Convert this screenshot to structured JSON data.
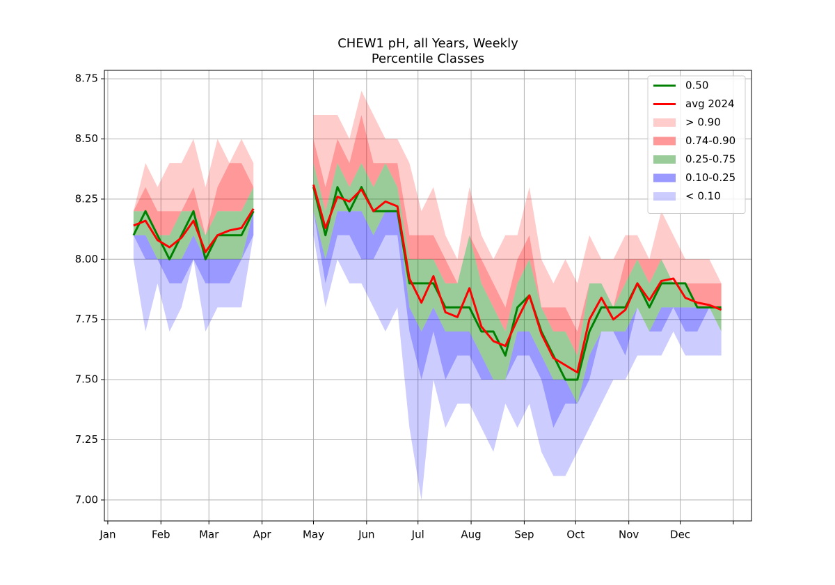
{
  "chart_data": {
    "type": "percentile_bands",
    "title": [
      "CHEW1 pH, all Years, Weekly",
      "Percentile Classes"
    ],
    "x": [
      16,
      23,
      30,
      37,
      44,
      51,
      58,
      65,
      72,
      79,
      86,
      93,
      100,
      107,
      114,
      121,
      128,
      135,
      142,
      149,
      156,
      163,
      170,
      177,
      184,
      191,
      198,
      205,
      212,
      219,
      226,
      233,
      240,
      247,
      254,
      261,
      268,
      275,
      282,
      289,
      296,
      303,
      310,
      317,
      324,
      331,
      338,
      345,
      352,
      359
    ],
    "xlim": [
      -1,
      376.6
    ],
    "xticks": [
      {
        "value": 1,
        "label": "Jan"
      },
      {
        "value": 32,
        "label": "Feb"
      },
      {
        "value": 60,
        "label": "Mar"
      },
      {
        "value": 91,
        "label": "Apr"
      },
      {
        "value": 121,
        "label": "May"
      },
      {
        "value": 152,
        "label": "Jun"
      },
      {
        "value": 182,
        "label": "Jul"
      },
      {
        "value": 213,
        "label": "Aug"
      },
      {
        "value": 244,
        "label": "Sep"
      },
      {
        "value": 274,
        "label": "Oct"
      },
      {
        "value": 305,
        "label": "Nov"
      },
      {
        "value": 335,
        "label": "Dec"
      },
      {
        "value": 366
      }
    ],
    "ylim": [
      6.913,
      8.785
    ],
    "yticks": [
      {
        "value": 7,
        "label": "7.00"
      },
      7.25,
      {
        "value": 7.5,
        "label": "7.50"
      },
      7.75,
      {
        "value": 8,
        "label": "8.00"
      },
      8.25,
      {
        "value": 8.5,
        "label": "8.50"
      },
      8.75
    ],
    "grid": true,
    "legend": "upper right",
    "levels": [
      [
        8.0,
        7.7,
        7.9,
        7.7,
        7.8,
        8.0,
        7.7,
        7.8,
        7.8,
        7.8,
        8.1,
        null,
        null,
        null,
        null,
        8.1,
        7.8,
        8.0,
        7.9,
        7.9,
        7.8,
        7.7,
        7.8,
        7.3,
        7.0,
        7.5,
        7.3,
        7.4,
        7.4,
        7.3,
        7.2,
        7.4,
        7.3,
        7.4,
        7.2,
        7.1,
        7.1,
        7.2,
        7.3,
        7.4,
        7.5,
        7.5,
        7.6,
        7.6,
        7.6,
        7.7,
        7.6,
        7.6,
        7.6,
        7.6
      ],
      [
        8.1,
        8.0,
        8.0,
        7.9,
        7.9,
        8.0,
        7.9,
        7.9,
        7.9,
        8.0,
        8.1,
        null,
        null,
        null,
        null,
        8.2,
        7.9,
        8.1,
        8.1,
        8.0,
        8.0,
        8.1,
        8.1,
        7.7,
        7.5,
        7.7,
        7.5,
        7.6,
        7.6,
        7.5,
        7.5,
        7.5,
        7.6,
        7.6,
        7.5,
        7.3,
        7.4,
        7.4,
        7.5,
        7.7,
        7.7,
        7.6,
        7.8,
        7.7,
        7.7,
        7.8,
        7.7,
        7.7,
        7.8,
        7.7
      ],
      [
        8.1,
        8.1,
        8.0,
        8.0,
        8.0,
        8.1,
        8.0,
        8.0,
        8.0,
        8.0,
        8.2,
        null,
        null,
        null,
        null,
        8.2,
        8.0,
        8.2,
        8.2,
        8.2,
        8.1,
        8.2,
        8.2,
        7.8,
        7.7,
        7.8,
        7.7,
        7.7,
        7.7,
        7.6,
        7.5,
        7.5,
        7.7,
        7.7,
        7.6,
        7.5,
        7.5,
        7.4,
        7.6,
        7.7,
        7.7,
        7.7,
        7.8,
        7.7,
        7.8,
        7.8,
        7.8,
        7.8,
        7.8,
        7.7
      ],
      [
        8.2,
        8.2,
        8.1,
        8.1,
        8.2,
        8.2,
        8.1,
        8.2,
        8.2,
        8.2,
        8.3,
        null,
        null,
        null,
        null,
        8.4,
        8.2,
        8.4,
        8.3,
        8.4,
        8.3,
        8.4,
        8.3,
        8.0,
        8.0,
        8.0,
        7.9,
        7.9,
        8.1,
        7.9,
        7.8,
        7.7,
        7.9,
        8.0,
        7.8,
        7.7,
        7.7,
        7.6,
        7.9,
        7.9,
        7.8,
        7.9,
        8.0,
        7.9,
        8.0,
        7.9,
        7.9,
        7.8,
        7.8,
        7.8
      ],
      [
        8.2,
        8.3,
        8.2,
        8.2,
        8.2,
        8.3,
        8.1,
        8.3,
        8.4,
        8.4,
        8.3,
        null,
        null,
        null,
        null,
        8.5,
        8.3,
        8.5,
        8.4,
        8.6,
        8.4,
        8.4,
        8.4,
        8.1,
        8.1,
        8.1,
        8.0,
        7.9,
        8.1,
        8.0,
        7.9,
        7.8,
        8.0,
        8.1,
        7.8,
        7.8,
        7.8,
        7.7,
        7.9,
        7.9,
        7.8,
        8.0,
        8.0,
        8.0,
        8.0,
        7.9,
        7.9,
        7.9,
        7.9,
        7.9
      ],
      [
        8.2,
        8.4,
        8.3,
        8.4,
        8.4,
        8.5,
        8.3,
        8.5,
        8.4,
        8.5,
        8.4,
        null,
        null,
        null,
        null,
        8.6,
        8.6,
        8.6,
        8.5,
        8.7,
        8.6,
        8.5,
        8.5,
        8.4,
        8.2,
        8.3,
        8.1,
        8.0,
        8.3,
        8.1,
        8.0,
        8.1,
        8.1,
        8.3,
        8.0,
        7.9,
        8.0,
        7.9,
        8.1,
        8.0,
        8.0,
        8.1,
        8.1,
        8.0,
        8.2,
        8.1,
        8.0,
        8.0,
        8.0,
        7.9
      ]
    ],
    "bands": [
      {
        "name": "< 0.10",
        "color": "#0000ff",
        "alpha": 0.2
      },
      {
        "name": "0.10-0.25",
        "color": "#0000ff",
        "alpha": 0.4
      },
      {
        "name": "0.25-0.75",
        "color": "#008000",
        "alpha": 0.4
      },
      {
        "name": "0.74-0.90",
        "color": "#ff0000",
        "alpha": 0.4
      },
      {
        "name": "> 0.90",
        "color": "#ff0000",
        "alpha": 0.2
      }
    ],
    "series": [
      {
        "name": "0.50",
        "color": "#008000",
        "values": [
          8.1,
          8.2,
          8.1,
          8.0,
          8.1,
          8.2,
          8.0,
          8.1,
          8.1,
          8.1,
          8.2,
          null,
          null,
          null,
          null,
          8.3,
          8.1,
          8.3,
          8.2,
          8.3,
          8.2,
          8.2,
          8.2,
          7.9,
          7.9,
          7.9,
          7.8,
          7.8,
          7.8,
          7.7,
          7.7,
          7.6,
          7.8,
          7.85,
          7.7,
          7.6,
          7.5,
          7.5,
          7.7,
          7.8,
          7.8,
          7.8,
          7.9,
          7.8,
          7.9,
          7.9,
          7.9,
          7.8,
          7.8,
          7.8
        ]
      },
      {
        "name": "avg 2024",
        "color": "#ff0000",
        "values": [
          8.14,
          8.16,
          8.08,
          8.05,
          8.09,
          8.16,
          8.03,
          8.1,
          8.12,
          8.13,
          8.21,
          null,
          null,
          null,
          null,
          8.31,
          8.13,
          8.26,
          8.24,
          8.29,
          8.2,
          8.24,
          8.22,
          7.92,
          7.82,
          7.93,
          7.78,
          7.76,
          7.88,
          7.72,
          7.66,
          7.64,
          7.75,
          7.85,
          7.69,
          7.59,
          7.56,
          7.53,
          7.75,
          7.84,
          7.75,
          7.79,
          7.9,
          7.83,
          7.91,
          7.92,
          7.84,
          7.82,
          7.81,
          7.79
        ]
      }
    ]
  }
}
